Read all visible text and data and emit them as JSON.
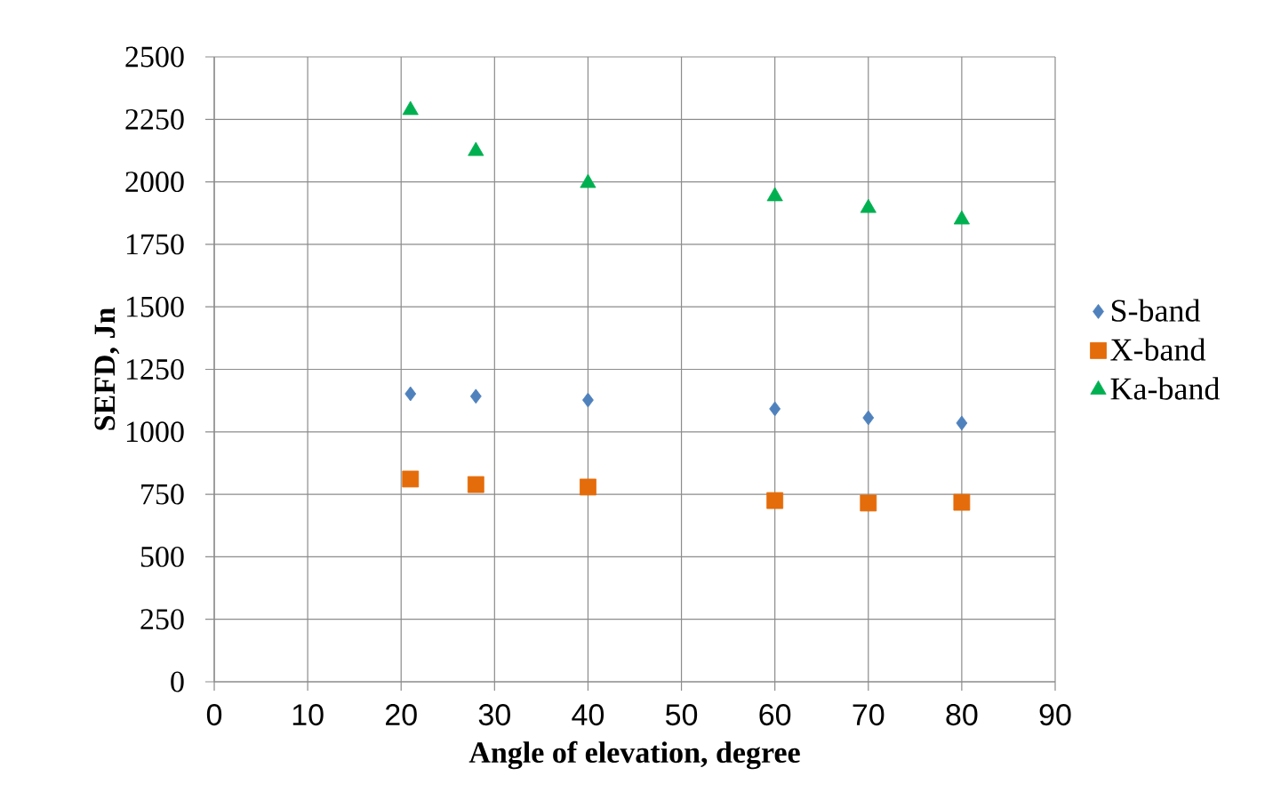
{
  "chart_data": {
    "type": "scatter",
    "xlabel": "Angle of elevation, degree",
    "ylabel": "SEFD, Jn",
    "x": [
      21,
      28,
      40,
      60,
      70,
      80
    ],
    "series": [
      {
        "name": "S-band",
        "color": "#4f81bd",
        "marker": "diamond",
        "values": [
          1152,
          1142,
          1127,
          1092,
          1056,
          1035
        ]
      },
      {
        "name": "X-band",
        "color": "#e46c0a",
        "marker": "square",
        "values": [
          811,
          789,
          779,
          725,
          715,
          718
        ]
      },
      {
        "name": "Ka-band",
        "color": "#00b050",
        "marker": "triangle",
        "values": [
          2287,
          2123,
          1995,
          1942,
          1895,
          1849
        ]
      }
    ],
    "xlim": [
      0,
      90
    ],
    "xticks": [
      0,
      10,
      20,
      30,
      40,
      50,
      60,
      70,
      80,
      90
    ],
    "ylim": [
      0,
      2500
    ],
    "yticks": [
      0,
      250,
      500,
      750,
      1000,
      1250,
      1500,
      1750,
      2000,
      2250,
      2500
    ],
    "grid": true,
    "legend": "right"
  }
}
